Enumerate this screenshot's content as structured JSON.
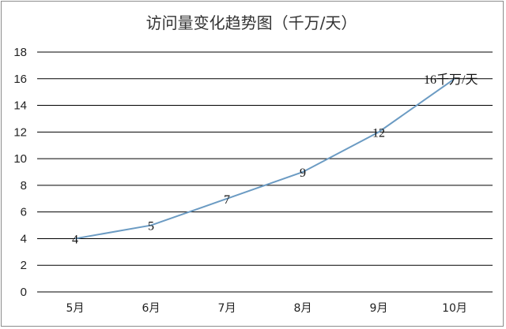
{
  "chart_data": {
    "type": "line",
    "title": "访问量变化趋势图（千万/天）",
    "categories": [
      "5月",
      "6月",
      "7月",
      "8月",
      "9月",
      "10月"
    ],
    "series": [
      {
        "values": [
          4,
          5,
          7,
          9,
          12,
          16
        ]
      }
    ],
    "data_labels": [
      "4",
      "5",
      "7",
      "9",
      "12",
      "16千万/天"
    ],
    "ylim": [
      0,
      18
    ],
    "yticks": [
      0,
      2,
      4,
      6,
      8,
      10,
      12,
      14,
      16,
      18
    ],
    "grid": true,
    "legend": "none",
    "line_color": "#6b9bc3"
  }
}
